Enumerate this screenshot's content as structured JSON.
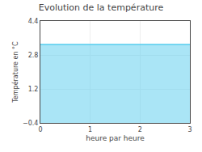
{
  "chart_data": {
    "type": "area",
    "title": "Evolution de la température",
    "x": [
      0,
      3
    ],
    "values": [
      3.3,
      3.3
    ],
    "xlabel": "heure par heure",
    "ylabel": "Température en °C",
    "xlim": [
      0,
      3
    ],
    "ylim": [
      -0.4,
      4.4
    ],
    "xticks": [
      0,
      1,
      2,
      3
    ],
    "yticks": [
      -0.4,
      1.2,
      2.8,
      4.4
    ],
    "grid": true,
    "color": "#55ccee"
  }
}
